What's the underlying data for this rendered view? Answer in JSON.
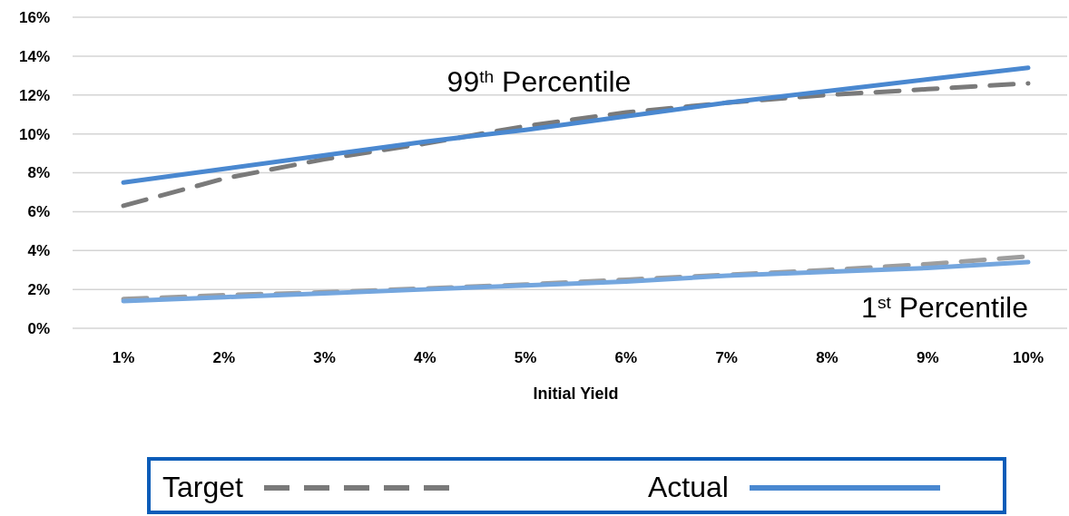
{
  "chart_data": {
    "type": "line",
    "xlabel": "Initial Yield",
    "categories": [
      "1%",
      "2%",
      "3%",
      "4%",
      "5%",
      "6%",
      "7%",
      "8%",
      "9%",
      "10%"
    ],
    "series": [
      {
        "name": "Target",
        "color": "#7a7a7a",
        "line_style": "dashed",
        "values": [
          6.3,
          7.7,
          8.7,
          9.5,
          10.4,
          11.1,
          11.6,
          12.0,
          12.3,
          12.6
        ]
      },
      {
        "name": "Actual",
        "color": "#4a88d0",
        "line_style": "solid",
        "values": [
          7.5,
          8.2,
          8.9,
          9.6,
          10.2,
          10.9,
          11.6,
          12.2,
          12.8,
          13.4
        ]
      },
      {
        "color": "#9e9e9e",
        "line_style": "dashed",
        "values": [
          1.5,
          1.7,
          1.85,
          2.05,
          2.25,
          2.5,
          2.75,
          3.0,
          3.3,
          3.7
        ]
      },
      {
        "color": "#74a6de",
        "line_style": "solid",
        "values": [
          1.4,
          1.6,
          1.8,
          2.0,
          2.2,
          2.4,
          2.7,
          2.9,
          3.1,
          3.4
        ]
      }
    ],
    "ylim": [
      0,
      16
    ],
    "yticks": [
      {
        "value": 0,
        "label": "0%"
      },
      {
        "value": 2,
        "label": "2%"
      },
      {
        "value": 4,
        "label": "4%"
      },
      {
        "value": 6,
        "label": "6%"
      },
      {
        "value": 8,
        "label": "8%"
      },
      {
        "value": 10,
        "label": "10%"
      },
      {
        "value": 12,
        "label": "12%"
      },
      {
        "value": 14,
        "label": "14%"
      },
      {
        "value": 16,
        "label": "16%"
      }
    ],
    "grid": "y",
    "legend": "bottom",
    "marker": "none",
    "annotations": [
      "99$^{th}$ Percentile",
      "1$^{st}$ Percentile"
    ]
  }
}
